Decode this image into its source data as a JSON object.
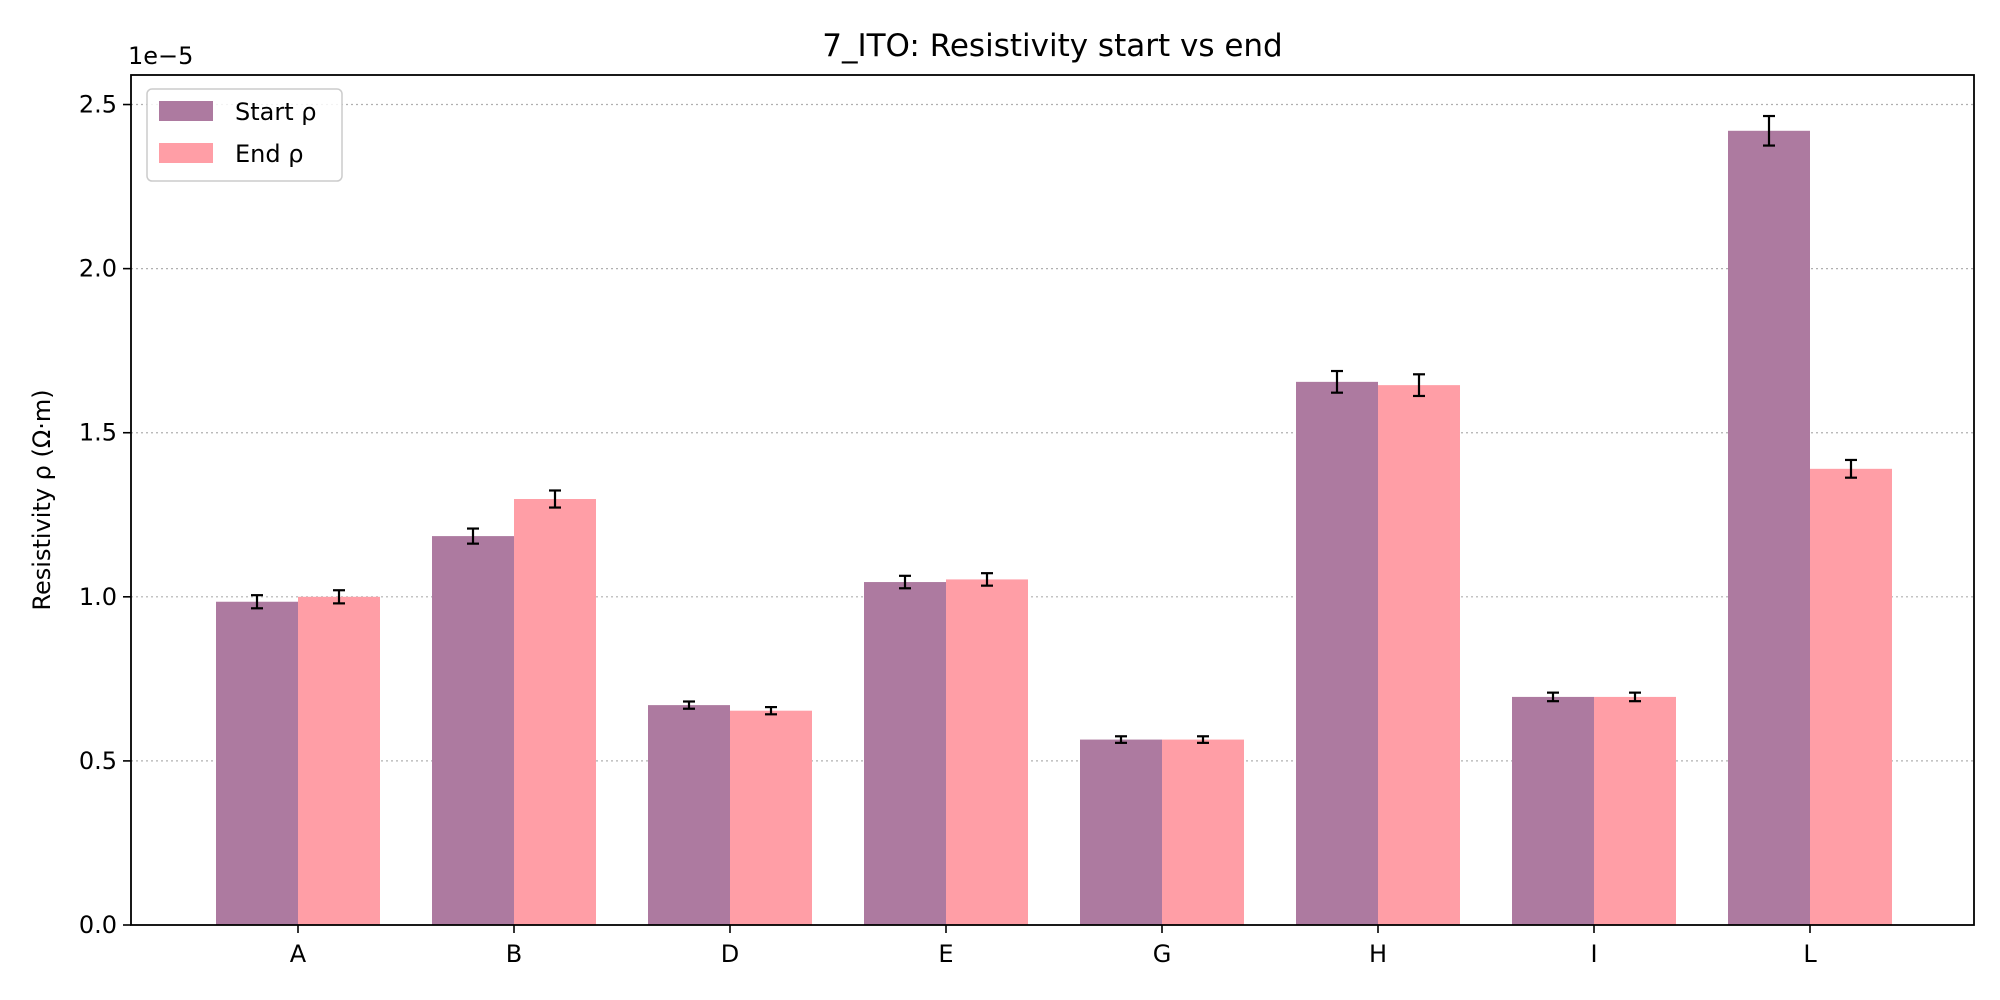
{
  "chart_data": {
    "type": "bar",
    "title": "7_ITO: Resistivity start vs end",
    "xlabel": "",
    "ylabel": "Resistivity ρ (Ω·m)",
    "y_offset_label": "1e−5",
    "y_scale_factor": 1e-05,
    "categories": [
      "A",
      "B",
      "D",
      "E",
      "G",
      "H",
      "I",
      "L"
    ],
    "series": [
      {
        "name": "Start ρ",
        "color": "#ad7aa0",
        "values": [
          0.985,
          1.185,
          0.67,
          1.045,
          0.565,
          1.655,
          0.695,
          2.42
        ],
        "errors": [
          0.02,
          0.023,
          0.011,
          0.019,
          0.01,
          0.033,
          0.013,
          0.045
        ]
      },
      {
        "name": "End ρ",
        "color": "#ff9ea6",
        "values": [
          1.0,
          1.298,
          0.653,
          1.053,
          0.565,
          1.645,
          0.695,
          1.39
        ],
        "errors": [
          0.02,
          0.026,
          0.011,
          0.019,
          0.01,
          0.033,
          0.013,
          0.027
        ]
      }
    ],
    "ylim": [
      0,
      2.59
    ],
    "yticks": [
      "0.0",
      "0.5",
      "1.0",
      "1.5",
      "2.0",
      "2.5"
    ],
    "grid": "y dotted",
    "legend_position": "top-left"
  }
}
